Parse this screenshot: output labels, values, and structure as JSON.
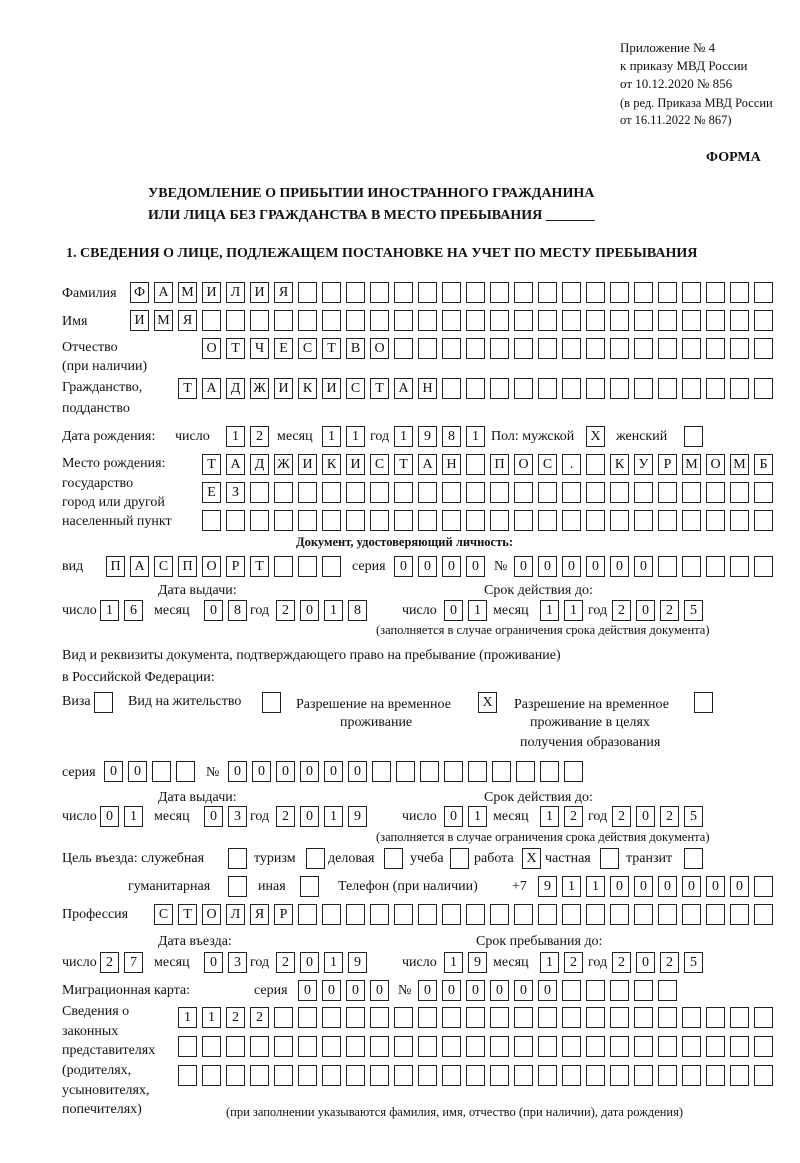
{
  "header": {
    "l1": "Приложение № 4",
    "l2": "к приказу МВД России",
    "l3": "от 10.12.2020 № 856",
    "l4": "(в ред. Приказа МВД России",
    "l5": "от 16.11.2022 № 867)"
  },
  "forma": "ФОРМА",
  "title1": "УВЕДОМЛЕНИЕ О ПРИБЫТИИ ИНОСТРАННОГО ГРАЖДАНИНА",
  "title2": "ИЛИ ЛИЦА БЕЗ ГРАЖДАНСТВА В МЕСТО ПРЕБЫВАНИЯ _______",
  "section1": "1. СВЕДЕНИЯ О ЛИЦЕ, ПОДЛЕЖАЩЕМ ПОСТАНОВКЕ НА УЧЕТ ПО МЕСТУ ПРЕБЫВАНИЯ",
  "labels": {
    "surname": "Фамилия",
    "name": "Имя",
    "patronymic": "Отчество",
    "patronymic2": "(при наличии)",
    "citizenship": "Гражданство,",
    "citizenship2": "подданство",
    "birth_date": "Дата рождения:",
    "day": "число",
    "month": "месяц",
    "year": "год",
    "sex": "Пол: мужской",
    "female": "женский",
    "birthplace1": "Место рождения:",
    "birthplace2": "государство",
    "birthplace3": "город или другой",
    "birthplace4": "населенный пункт",
    "id_doc": "Документ, удостоверяющий личность:",
    "kind": "вид",
    "series": "серия",
    "number": "№",
    "issue_date": "Дата выдачи:",
    "valid_until": "Срок действия до:",
    "valid_note": "(заполняется в случае ограничения срока действия документа)",
    "right_doc1": "Вид и реквизиты документа, подтверждающего право на пребывание (проживание)",
    "right_doc2": "в Российской Федерации:",
    "visa": "Виза",
    "residence": "Вид на жительство",
    "trp1": "Разрешение на временное",
    "trp2": "проживание",
    "trpe1": "Разрешение на временное",
    "trpe2": "проживание в целях",
    "trpe3": "получения образования",
    "purpose": "Цель въезда: служебная",
    "tourism": "туризм",
    "business": "деловая",
    "study": "учеба",
    "work": "работа",
    "private": "частная",
    "transit": "транзит",
    "humanitarian": "гуманитарная",
    "other": "иная",
    "phone": "Телефон (при наличии)",
    "phone_prefix": "+7",
    "profession": "Профессия",
    "entry_date": "Дата въезда:",
    "stay_until": "Срок пребывания до:",
    "migration_card": "Миграционная карта:",
    "reps1": "Сведения о",
    "reps2": "законных",
    "reps3": "представителях",
    "reps4": "(родителях,",
    "reps5": "усыновителях,",
    "reps6": "попечителях)",
    "reps_note": "(при заполнении указываются фамилия, имя, отчество (при наличии), дата рождения)"
  },
  "values": {
    "surname": "ФАМИЛИЯ",
    "name": "ИМЯ",
    "patronymic": "ОТЧЕСТВО",
    "citizenship": "ТАДЖИКИСТАН",
    "birth_day": "12",
    "birth_month": "11",
    "birth_year": "1981",
    "sex_male": "X",
    "sex_female": "",
    "birthplace1": "ТАДЖИКИСТАН ПОС. КУРМОМБ",
    "birthplace2": "ЕЗ",
    "birthplace3": "",
    "doc_kind": "ПАСПОРТ",
    "doc_series": "0000",
    "doc_number": "000000",
    "doc_issue_day": "16",
    "doc_issue_month": "08",
    "doc_issue_year": "2018",
    "doc_valid_day": "01",
    "doc_valid_month": "11",
    "doc_valid_year": "2025",
    "visa": "",
    "residence": "",
    "trp": "X",
    "trpe": "",
    "rd_series": "00",
    "rd_number": "000000",
    "rd_issue_day": "01",
    "rd_issue_month": "03",
    "rd_issue_year": "2019",
    "rd_valid_day": "01",
    "rd_valid_month": "12",
    "rd_valid_year": "2025",
    "p_official": "",
    "p_tourism": "",
    "p_business": "",
    "p_study": "",
    "p_work": "X",
    "p_private": "",
    "p_transit": "",
    "p_humanitarian": "",
    "p_other": "",
    "phone": "911000000",
    "profession": "СТОЛЯР",
    "entry_day": "27",
    "entry_month": "03",
    "entry_year": "2019",
    "stay_day": "19",
    "stay_month": "12",
    "stay_year": "2025",
    "mc_series": "0000",
    "mc_number": "000000",
    "reps1": "1122",
    "reps2": "",
    "reps3": ""
  }
}
